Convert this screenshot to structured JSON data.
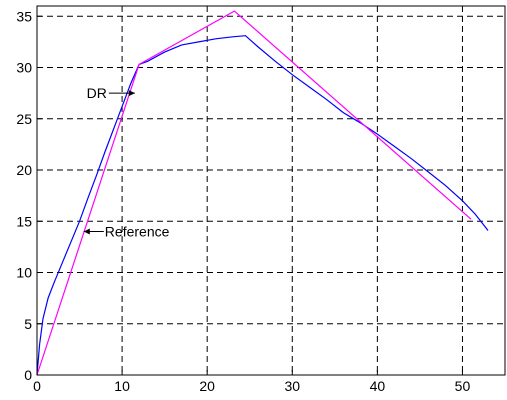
{
  "chart_data": {
    "type": "line",
    "title": "",
    "xlabel": "",
    "ylabel": "",
    "xlim": [
      0,
      55
    ],
    "ylim": [
      0,
      36
    ],
    "grid": true,
    "x_ticks": [
      0,
      10,
      20,
      30,
      40,
      50
    ],
    "y_ticks": [
      0,
      5,
      10,
      15,
      20,
      25,
      30,
      35
    ],
    "series": [
      {
        "color": "#0000ff",
        "x": [
          0,
          0.3,
          0.7,
          1.3,
          2,
          3,
          4,
          5,
          6,
          7,
          8,
          9,
          10,
          11,
          12,
          13,
          15,
          17,
          19,
          21,
          23,
          24.5,
          26,
          28,
          30,
          32,
          34,
          36,
          38,
          40,
          42,
          44,
          46,
          48,
          50,
          51.5,
          53
        ],
        "y": [
          0,
          3,
          5.5,
          7.5,
          9,
          11,
          13,
          15,
          17.3,
          19.5,
          21.8,
          24,
          26.2,
          28.4,
          30.3,
          30.6,
          31.5,
          32.2,
          32.5,
          32.8,
          33.0,
          33.1,
          32.0,
          30.6,
          29.3,
          28.1,
          26.9,
          25.6,
          24.6,
          23.5,
          22.3,
          21.1,
          19.8,
          18.5,
          17.0,
          15.7,
          14.1
        ]
      },
      {
        "color": "#ff00ff",
        "x": [
          0,
          12,
          23.2,
          51
        ],
        "y": [
          0,
          30.3,
          35.5,
          15.2
        ]
      }
    ],
    "annotations": [
      {
        "text": "DR",
        "x": 11.5,
        "y": 27.5
      },
      {
        "text": "Reference",
        "x": 5.5,
        "y": 14.0
      }
    ]
  }
}
